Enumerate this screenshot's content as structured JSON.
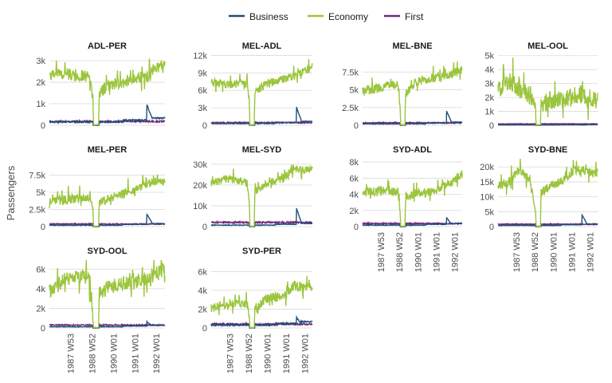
{
  "chart_data": {
    "type": "line",
    "ylabel": "Passengers",
    "xlabel": "",
    "legend_position": "top",
    "legend": [
      {
        "name": "Business",
        "color": "#1f4e79"
      },
      {
        "name": "Economy",
        "color": "#9bc53d"
      },
      {
        "name": "First",
        "color": "#6b2c7a"
      }
    ],
    "x_ticks": [
      "1987 W53",
      "1988 W52",
      "1990 W01",
      "1991 W01",
      "1992 W01"
    ],
    "x_tick_weeks": [
      52,
      104,
      157,
      209,
      261
    ],
    "n_weeks": 283,
    "strike_weeks": [
      107,
      121
    ],
    "panels": [
      {
        "title": "ADL-PER",
        "ylim": [
          0,
          3300
        ],
        "ticks": [
          0,
          1000,
          2000,
          3000
        ],
        "tick_labels": [
          "0",
          "1k",
          "2k",
          "3k"
        ],
        "economy_knots": [
          [
            0,
            2300
          ],
          [
            20,
            2450
          ],
          [
            60,
            2350
          ],
          [
            100,
            2250
          ],
          [
            107,
            1100
          ],
          [
            121,
            1400
          ],
          [
            140,
            1850
          ],
          [
            180,
            2000
          ],
          [
            210,
            2200
          ],
          [
            240,
            2300
          ],
          [
            260,
            2700
          ],
          [
            283,
            2850
          ]
        ],
        "economy_noise": 280,
        "business_level": 150,
        "business_spike": 800,
        "first_level": 180
      },
      {
        "title": "MEL-ADL",
        "ylim": [
          0,
          12200
        ],
        "ticks": [
          0,
          3000,
          6000,
          9000,
          12000
        ],
        "tick_labels": [
          "0",
          "3k",
          "6k",
          "9k",
          "12k"
        ],
        "economy_knots": [
          [
            0,
            7400
          ],
          [
            50,
            7000
          ],
          [
            100,
            7300
          ],
          [
            107,
            3800
          ],
          [
            121,
            5600
          ],
          [
            150,
            7000
          ],
          [
            200,
            7900
          ],
          [
            240,
            8600
          ],
          [
            283,
            10000
          ]
        ],
        "economy_noise": 700,
        "business_level": 300,
        "business_spike": 2800,
        "first_level": 450
      },
      {
        "title": "MEL-BNE",
        "ylim": [
          0,
          10000
        ],
        "ticks": [
          0,
          2500,
          5000,
          7500
        ],
        "tick_labels": [
          "0",
          "2.5k",
          "5k",
          "7.5k"
        ],
        "economy_knots": [
          [
            0,
            4800
          ],
          [
            50,
            5300
          ],
          [
            100,
            5800
          ],
          [
            107,
            2600
          ],
          [
            121,
            4400
          ],
          [
            150,
            6000
          ],
          [
            200,
            6700
          ],
          [
            240,
            7000
          ],
          [
            283,
            7800
          ]
        ],
        "economy_noise": 650,
        "business_level": 200,
        "business_spike": 1800,
        "first_level": 350
      },
      {
        "title": "MEL-OOL",
        "ylim": [
          0,
          5100
        ],
        "ticks": [
          0,
          1000,
          2000,
          3000,
          4000,
          5000
        ],
        "tick_labels": [
          "0",
          "1k",
          "2k",
          "3k",
          "4k",
          "5k"
        ],
        "economy_knots": [
          [
            0,
            2500
          ],
          [
            30,
            3200
          ],
          [
            70,
            2400
          ],
          [
            100,
            2000
          ],
          [
            107,
            800
          ],
          [
            121,
            1600
          ],
          [
            160,
            1700
          ],
          [
            200,
            1900
          ],
          [
            230,
            2300
          ],
          [
            250,
            2000
          ],
          [
            283,
            1700
          ]
        ],
        "economy_noise": 650,
        "business_level": 20,
        "business_spike": 0,
        "first_level": 100
      },
      {
        "title": "MEL-PER",
        "ylim": [
          0,
          10000
        ],
        "ticks": [
          0,
          2500,
          5000,
          7500
        ],
        "tick_labels": [
          "0",
          "2.5k",
          "5k",
          "7.5k"
        ],
        "economy_knots": [
          [
            0,
            3600
          ],
          [
            50,
            4000
          ],
          [
            100,
            4300
          ],
          [
            107,
            2200
          ],
          [
            121,
            3400
          ],
          [
            150,
            4200
          ],
          [
            200,
            5200
          ],
          [
            240,
            6300
          ],
          [
            283,
            6800
          ]
        ],
        "economy_noise": 650,
        "business_level": 200,
        "business_spike": 1600,
        "first_level": 380
      },
      {
        "title": "MEL-SYD",
        "ylim": [
          0,
          33000
        ],
        "ticks": [
          0,
          10000,
          20000,
          30000
        ],
        "tick_labels": [
          "0",
          "10k",
          "20k",
          "30k"
        ],
        "economy_knots": [
          [
            0,
            21000
          ],
          [
            40,
            23000
          ],
          [
            80,
            22000
          ],
          [
            100,
            21000
          ],
          [
            107,
            12000
          ],
          [
            121,
            17000
          ],
          [
            160,
            21000
          ],
          [
            200,
            23000
          ],
          [
            230,
            28000
          ],
          [
            260,
            27000
          ],
          [
            283,
            28000
          ]
        ],
        "economy_noise": 1800,
        "business_level": 700,
        "business_spike": 8000,
        "first_level": 2000
      },
      {
        "title": "SYD-ADL",
        "ylim": [
          0,
          8500
        ],
        "ticks": [
          0,
          2000,
          4000,
          6000,
          8000
        ],
        "tick_labels": [
          "0",
          "2k",
          "4k",
          "6k",
          "8k"
        ],
        "economy_knots": [
          [
            0,
            4200
          ],
          [
            50,
            4500
          ],
          [
            100,
            4400
          ],
          [
            107,
            1800
          ],
          [
            121,
            3500
          ],
          [
            150,
            4200
          ],
          [
            200,
            4300
          ],
          [
            240,
            5200
          ],
          [
            283,
            6500
          ]
        ],
        "economy_noise": 550,
        "business_level": 180,
        "business_spike": 900,
        "first_level": 380
      },
      {
        "title": "SYD-BNE",
        "ylim": [
          0,
          23000
        ],
        "ticks": [
          0,
          5000,
          10000,
          15000,
          20000
        ],
        "tick_labels": [
          "0",
          "5k",
          "10k",
          "15k",
          "20k"
        ],
        "economy_knots": [
          [
            0,
            13500
          ],
          [
            30,
            15000
          ],
          [
            60,
            19000
          ],
          [
            90,
            16000
          ],
          [
            107,
            5000
          ],
          [
            121,
            11000
          ],
          [
            150,
            14000
          ],
          [
            180,
            15000
          ],
          [
            220,
            19500
          ],
          [
            250,
            18500
          ],
          [
            283,
            18000
          ]
        ],
        "economy_noise": 1500,
        "business_level": 400,
        "business_spike": 3500,
        "first_level": 800
      },
      {
        "title": "SYD-OOL",
        "ylim": [
          0,
          7000
        ],
        "ticks": [
          0,
          2000,
          4000,
          6000
        ],
        "tick_labels": [
          "0",
          "2k",
          "4k",
          "6k"
        ],
        "economy_knots": [
          [
            0,
            3800
          ],
          [
            40,
            5000
          ],
          [
            80,
            5200
          ],
          [
            100,
            4800
          ],
          [
            107,
            800
          ],
          [
            121,
            3600
          ],
          [
            160,
            4400
          ],
          [
            200,
            4700
          ],
          [
            240,
            5000
          ],
          [
            283,
            6000
          ]
        ],
        "economy_noise": 750,
        "business_level": 120,
        "business_spike": 500,
        "first_level": 300
      },
      {
        "title": "SYD-PER",
        "ylim": [
          0,
          7300
        ],
        "ticks": [
          0,
          2000,
          4000,
          6000
        ],
        "tick_labels": [
          "0",
          "2k",
          "4k",
          "6k"
        ],
        "economy_knots": [
          [
            0,
            2100
          ],
          [
            50,
            2600
          ],
          [
            100,
            2500
          ],
          [
            107,
            1200
          ],
          [
            121,
            2000
          ],
          [
            150,
            3000
          ],
          [
            200,
            3400
          ],
          [
            230,
            4500
          ],
          [
            260,
            4300
          ],
          [
            283,
            4500
          ]
        ],
        "economy_noise": 500,
        "business_level": 300,
        "business_spike": 800,
        "first_level": 400
      }
    ]
  }
}
